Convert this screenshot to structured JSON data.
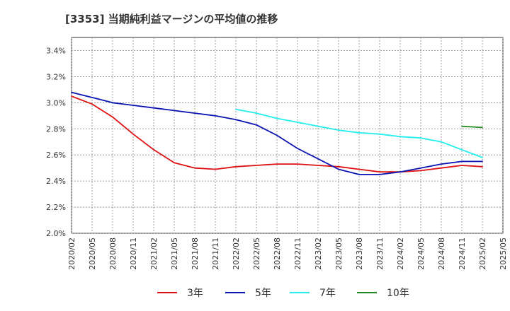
{
  "chart_data": {
    "type": "line",
    "title": "[3353]  当期純利益マージンの平均値の推移",
    "xlabel": "",
    "ylabel": "",
    "ylim": [
      2.0,
      3.5
    ],
    "y_ticks": [
      "2.0%",
      "2.2%",
      "2.4%",
      "2.6%",
      "2.8%",
      "3.0%",
      "3.2%",
      "3.4%"
    ],
    "x_ticks": [
      "2020/02",
      "2020/05",
      "2020/08",
      "2020/11",
      "2021/02",
      "2021/05",
      "2021/08",
      "2021/11",
      "2022/02",
      "2022/05",
      "2022/08",
      "2022/11",
      "2023/02",
      "2023/05",
      "2023/08",
      "2023/11",
      "2024/02",
      "2024/05",
      "2024/08",
      "2024/11",
      "2025/02",
      "2025/05"
    ],
    "grid": true,
    "legend_position": "bottom",
    "series": [
      {
        "name": "3年",
        "color": "#dd1111",
        "x": [
          "2020/02",
          "2020/05",
          "2020/08",
          "2020/11",
          "2021/02",
          "2021/05",
          "2021/08",
          "2021/11",
          "2022/02",
          "2022/05",
          "2022/08",
          "2022/11",
          "2023/02",
          "2023/05",
          "2023/08",
          "2023/11",
          "2024/02",
          "2024/05",
          "2024/08",
          "2024/11",
          "2025/02"
        ],
        "values": [
          3.05,
          2.99,
          2.89,
          2.76,
          2.64,
          2.54,
          2.5,
          2.49,
          2.51,
          2.52,
          2.53,
          2.53,
          2.52,
          2.51,
          2.49,
          2.47,
          2.47,
          2.48,
          2.5,
          2.52,
          2.51
        ]
      },
      {
        "name": "5年",
        "color": "#0a14b4",
        "x": [
          "2020/02",
          "2020/05",
          "2020/08",
          "2020/11",
          "2021/02",
          "2021/05",
          "2021/08",
          "2021/11",
          "2022/02",
          "2022/05",
          "2022/08",
          "2022/11",
          "2023/02",
          "2023/05",
          "2023/08",
          "2023/11",
          "2024/02",
          "2024/05",
          "2024/08",
          "2024/11",
          "2025/02"
        ],
        "values": [
          3.08,
          3.04,
          3.0,
          2.98,
          2.96,
          2.94,
          2.92,
          2.9,
          2.87,
          2.83,
          2.75,
          2.65,
          2.57,
          2.49,
          2.45,
          2.45,
          2.47,
          2.5,
          2.53,
          2.55,
          2.55
        ]
      },
      {
        "name": "7年",
        "color": "#22eeee",
        "x": [
          "2022/02",
          "2022/05",
          "2022/08",
          "2022/11",
          "2023/02",
          "2023/05",
          "2023/08",
          "2023/11",
          "2024/02",
          "2024/05",
          "2024/08",
          "2024/11",
          "2025/02"
        ],
        "values": [
          2.95,
          2.92,
          2.88,
          2.85,
          2.82,
          2.79,
          2.77,
          2.76,
          2.74,
          2.73,
          2.7,
          2.64,
          2.58
        ]
      },
      {
        "name": "10年",
        "color": "#228822",
        "x": [
          "2024/11",
          "2025/02"
        ],
        "values": [
          2.82,
          2.81
        ]
      }
    ]
  }
}
